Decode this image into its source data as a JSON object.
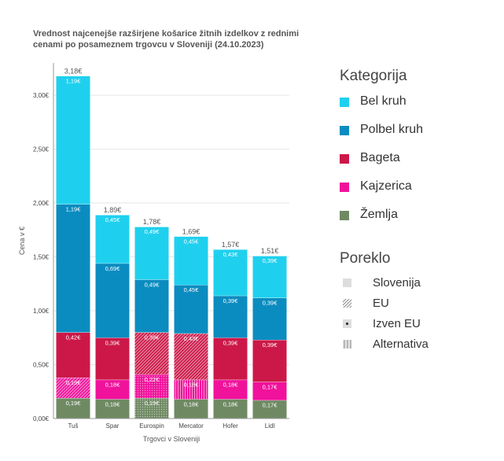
{
  "chart_data": {
    "type": "bar",
    "stacked": true,
    "title_lines": [
      "Vrednost najcenejše razširjene košarice žitnih izdelkov z rednimi",
      " cenami po posameznem trgovcu v Sloveniji (24.10.2023)"
    ],
    "xlabel": "Trgovci v Sloveniji",
    "ylabel": "Cena v €",
    "ylim": [
      0,
      3.3
    ],
    "yticks": [
      0,
      0.5,
      1.0,
      1.5,
      2.0,
      2.5,
      3.0
    ],
    "ytick_labels": [
      "0,00€",
      "0,50€",
      "1,00€",
      "1,50€",
      "2,00€",
      "2,50€",
      "3,00€"
    ],
    "grid": true,
    "categories": [
      "Tuš",
      "Spar",
      "Eurospin",
      "Mercator",
      "Hofer",
      "Lidl"
    ],
    "totals": [
      3.18,
      1.89,
      1.78,
      1.69,
      1.57,
      1.51
    ],
    "total_labels": [
      "3,18€",
      "1,89€",
      "1,78€",
      "1,69€",
      "1,57€",
      "1,51€"
    ],
    "series": [
      {
        "name": "Žemlja",
        "color": "#6f8a63",
        "values": [
          0.19,
          0.18,
          0.19,
          0.18,
          0.18,
          0.17
        ],
        "labels": [
          "0,19€",
          "0,18€",
          "0,19€",
          "0,18€",
          "0,18€",
          "0,17€"
        ],
        "origin": [
          "Slovenija",
          "Slovenija",
          "Izven EU",
          "Slovenija",
          "Slovenija",
          "Slovenija"
        ]
      },
      {
        "name": "Kajzerica",
        "color": "#f0129b",
        "values": [
          0.19,
          0.18,
          0.22,
          0.18,
          0.18,
          0.17
        ],
        "labels": [
          "0,19€",
          "0,18€",
          "0,22€",
          "0,18€",
          "0,18€",
          "0,17€"
        ],
        "origin": [
          "EU",
          "Slovenija",
          "Izven EU",
          "Alternativa",
          "Slovenija",
          "Slovenija"
        ]
      },
      {
        "name": "Bageta",
        "color": "#cc1848",
        "values": [
          0.42,
          0.39,
          0.39,
          0.43,
          0.39,
          0.39
        ],
        "labels": [
          "0,42€",
          "0,39€",
          "0,39€",
          "0,43€",
          "0,39€",
          "0,39€"
        ],
        "origin": [
          "Slovenija",
          "Slovenija",
          "EU",
          "EU",
          "Slovenija",
          "Slovenija"
        ]
      },
      {
        "name": "Polbel kruh",
        "color": "#0b8cc0",
        "values": [
          1.19,
          0.69,
          0.49,
          0.45,
          0.39,
          0.39
        ],
        "labels": [
          "1,19€",
          "0,69€",
          "0,49€",
          "0,45€",
          "0,39€",
          "0,39€"
        ],
        "origin": [
          "Slovenija",
          "Slovenija",
          "Slovenija",
          "Slovenija",
          "Slovenija",
          "Slovenija"
        ]
      },
      {
        "name": "Bel kruh",
        "color": "#1fd0ee",
        "values": [
          1.19,
          0.45,
          0.49,
          0.45,
          0.43,
          0.39
        ],
        "labels": [
          "1,19€",
          "0,45€",
          "0,49€",
          "0,45€",
          "0,43€",
          "0,39€"
        ],
        "origin": [
          "Slovenija",
          "Slovenija",
          "Slovenija",
          "Slovenija",
          "Slovenija",
          "Slovenija"
        ]
      }
    ],
    "legend_category": {
      "title": "Kategorija",
      "items": [
        {
          "label": "Bel kruh",
          "color": "#1fd0ee"
        },
        {
          "label": "Polbel kruh",
          "color": "#0b8cc0"
        },
        {
          "label": "Bageta",
          "color": "#cc1848"
        },
        {
          "label": "Kajzerica",
          "color": "#f0129b"
        },
        {
          "label": "Žemlja",
          "color": "#6f8a63"
        }
      ]
    },
    "legend_origin": {
      "title": "Poreklo",
      "items": [
        {
          "label": "Slovenija",
          "pattern": "solid"
        },
        {
          "label": "EU",
          "pattern": "diagonal"
        },
        {
          "label": "Izven EU",
          "pattern": "dots"
        },
        {
          "label": "Alternativa",
          "pattern": "vertical"
        }
      ]
    },
    "legend_placement": "right"
  }
}
